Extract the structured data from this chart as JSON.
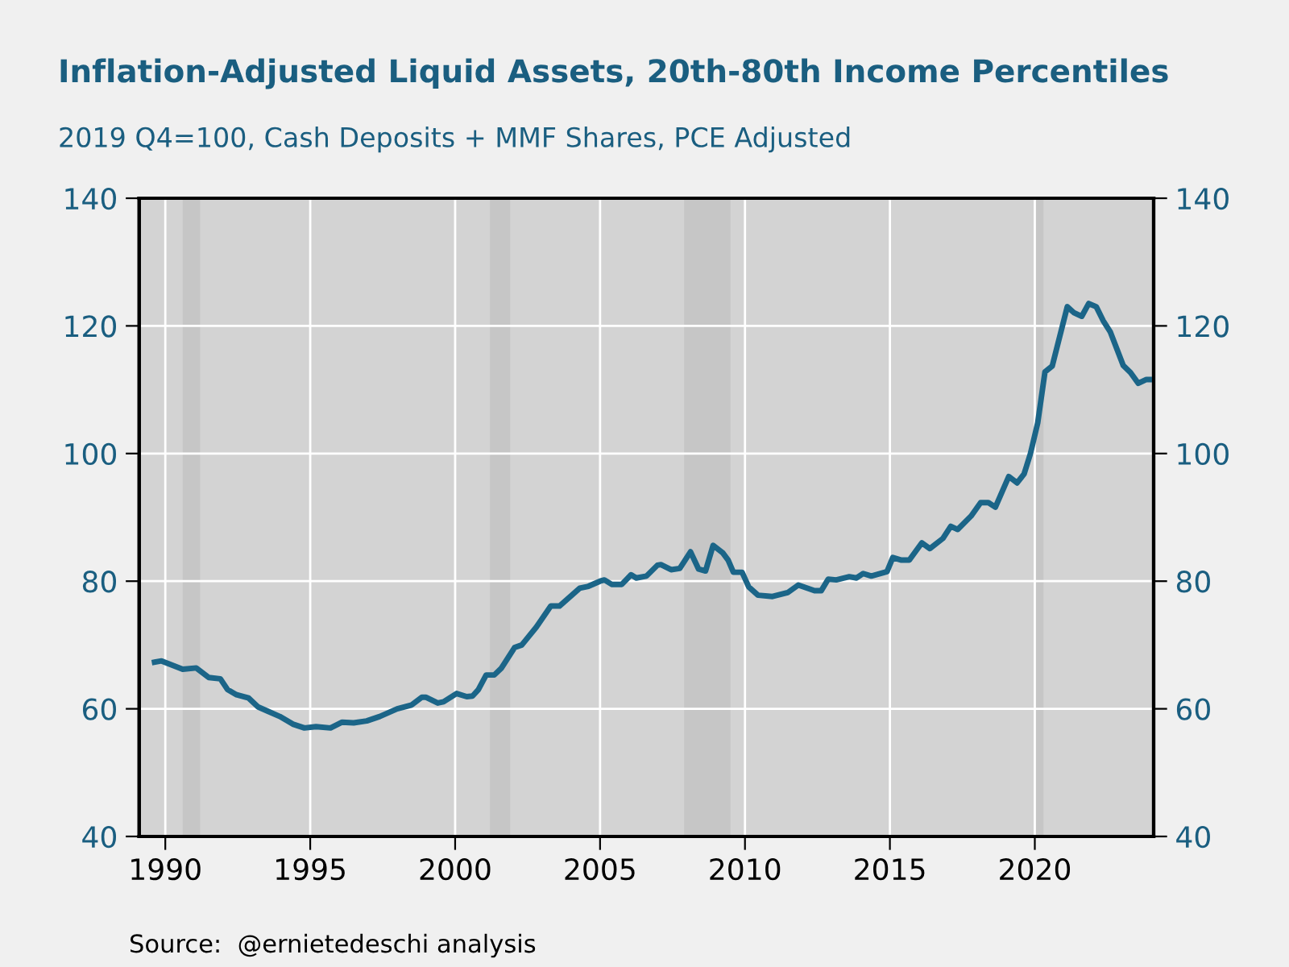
{
  "chart_data": {
    "type": "line",
    "title": "Inflation-Adjusted Liquid Assets, 20th-80th Income Percentiles",
    "subtitle": "2019 Q4=100, Cash Deposits + MMF Shares, PCE Adjusted",
    "annotations": [
      "Source:  @ernietedeschi analysis"
    ],
    "x": [
      1989.63,
      1989.87,
      1990.6,
      1991.07,
      1991.5,
      1991.9,
      1992.15,
      1992.46,
      1992.87,
      1993.2,
      1993.5,
      1993.95,
      1994.4,
      1994.8,
      1995.2,
      1995.7,
      1996.1,
      1996.5,
      1996.95,
      1997.4,
      1998.0,
      1998.5,
      1998.85,
      1999.0,
      1999.4,
      1999.6,
      2000.05,
      2000.4,
      2000.6,
      2000.8,
      2001.07,
      2001.35,
      2001.6,
      2002.05,
      2002.3,
      2002.8,
      2003.3,
      2003.6,
      2004.3,
      2004.6,
      2005.0,
      2005.15,
      2005.4,
      2005.75,
      2006.07,
      2006.25,
      2006.6,
      2006.98,
      2007.1,
      2007.45,
      2007.75,
      2008.12,
      2008.4,
      2008.64,
      2008.9,
      2009.24,
      2009.42,
      2009.6,
      2009.9,
      2010.13,
      2010.45,
      2010.95,
      2011.47,
      2011.84,
      2012.4,
      2012.63,
      2012.87,
      2013.15,
      2013.6,
      2013.85,
      2014.08,
      2014.36,
      2014.9,
      2015.1,
      2015.4,
      2015.67,
      2016.1,
      2016.38,
      2016.83,
      2017.1,
      2017.34,
      2017.8,
      2018.13,
      2018.4,
      2018.64,
      2019.1,
      2019.39,
      2019.63,
      2019.85,
      2020.1,
      2020.35,
      2020.6,
      2021.12,
      2021.34,
      2021.62,
      2021.86,
      2022.12,
      2022.36,
      2022.6,
      2023.05,
      2023.3,
      2023.57,
      2023.85,
      2023.95
    ],
    "series": [
      {
        "color": "#1b6588",
        "values": [
          67.3,
          67.5,
          66.2,
          66.4,
          64.9,
          64.7,
          63.0,
          62.2,
          61.7,
          60.3,
          59.7,
          58.8,
          57.6,
          57.0,
          57.2,
          57.0,
          57.9,
          57.8,
          58.1,
          58.8,
          60.0,
          60.6,
          61.8,
          61.8,
          60.9,
          61.1,
          62.4,
          61.9,
          62.0,
          63.0,
          65.3,
          65.3,
          66.4,
          69.6,
          70.0,
          72.8,
          76.1,
          76.1,
          78.9,
          79.2,
          80.0,
          80.2,
          79.5,
          79.5,
          81.0,
          80.5,
          80.8,
          82.5,
          82.6,
          81.8,
          82.0,
          84.6,
          81.9,
          81.6,
          85.6,
          84.4,
          83.3,
          81.4,
          81.4,
          79.1,
          77.8,
          77.6,
          78.2,
          79.4,
          78.5,
          78.5,
          80.3,
          80.2,
          80.7,
          80.5,
          81.2,
          80.8,
          81.5,
          83.7,
          83.3,
          83.3,
          86.0,
          85.1,
          86.7,
          88.6,
          88.1,
          90.2,
          92.3,
          92.3,
          91.6,
          96.4,
          95.4,
          96.8,
          100.0,
          104.8,
          112.8,
          113.7,
          123.0,
          122.1,
          121.5,
          123.5,
          123.0,
          120.8,
          119.1,
          113.8,
          112.7,
          111.0,
          111.6,
          111.6
        ]
      }
    ],
    "xlim": [
      1989.1,
      2024.1
    ],
    "xticks": [
      1990,
      1995,
      2000,
      2005,
      2010,
      2015,
      2020
    ],
    "ylim": [
      40,
      140
    ],
    "yticks": [
      40,
      60,
      80,
      100,
      120,
      140
    ],
    "y2lim": [
      40,
      140
    ],
    "y2ticks": [
      40,
      60,
      80,
      100,
      120,
      140
    ],
    "bands": [
      {
        "axis": "x",
        "from": 1990.6,
        "to": 1991.2,
        "color": "#c6c6c6"
      },
      {
        "axis": "x",
        "from": 2001.2,
        "to": 2001.9,
        "color": "#c6c6c6"
      },
      {
        "axis": "x",
        "from": 2007.9,
        "to": 2009.5,
        "color": "#c6c6c6"
      },
      {
        "axis": "x",
        "from": 2020.0,
        "to": 2020.3,
        "color": "#c6c6c6"
      }
    ],
    "grid": true,
    "line_style": "solid",
    "marker": "none"
  }
}
